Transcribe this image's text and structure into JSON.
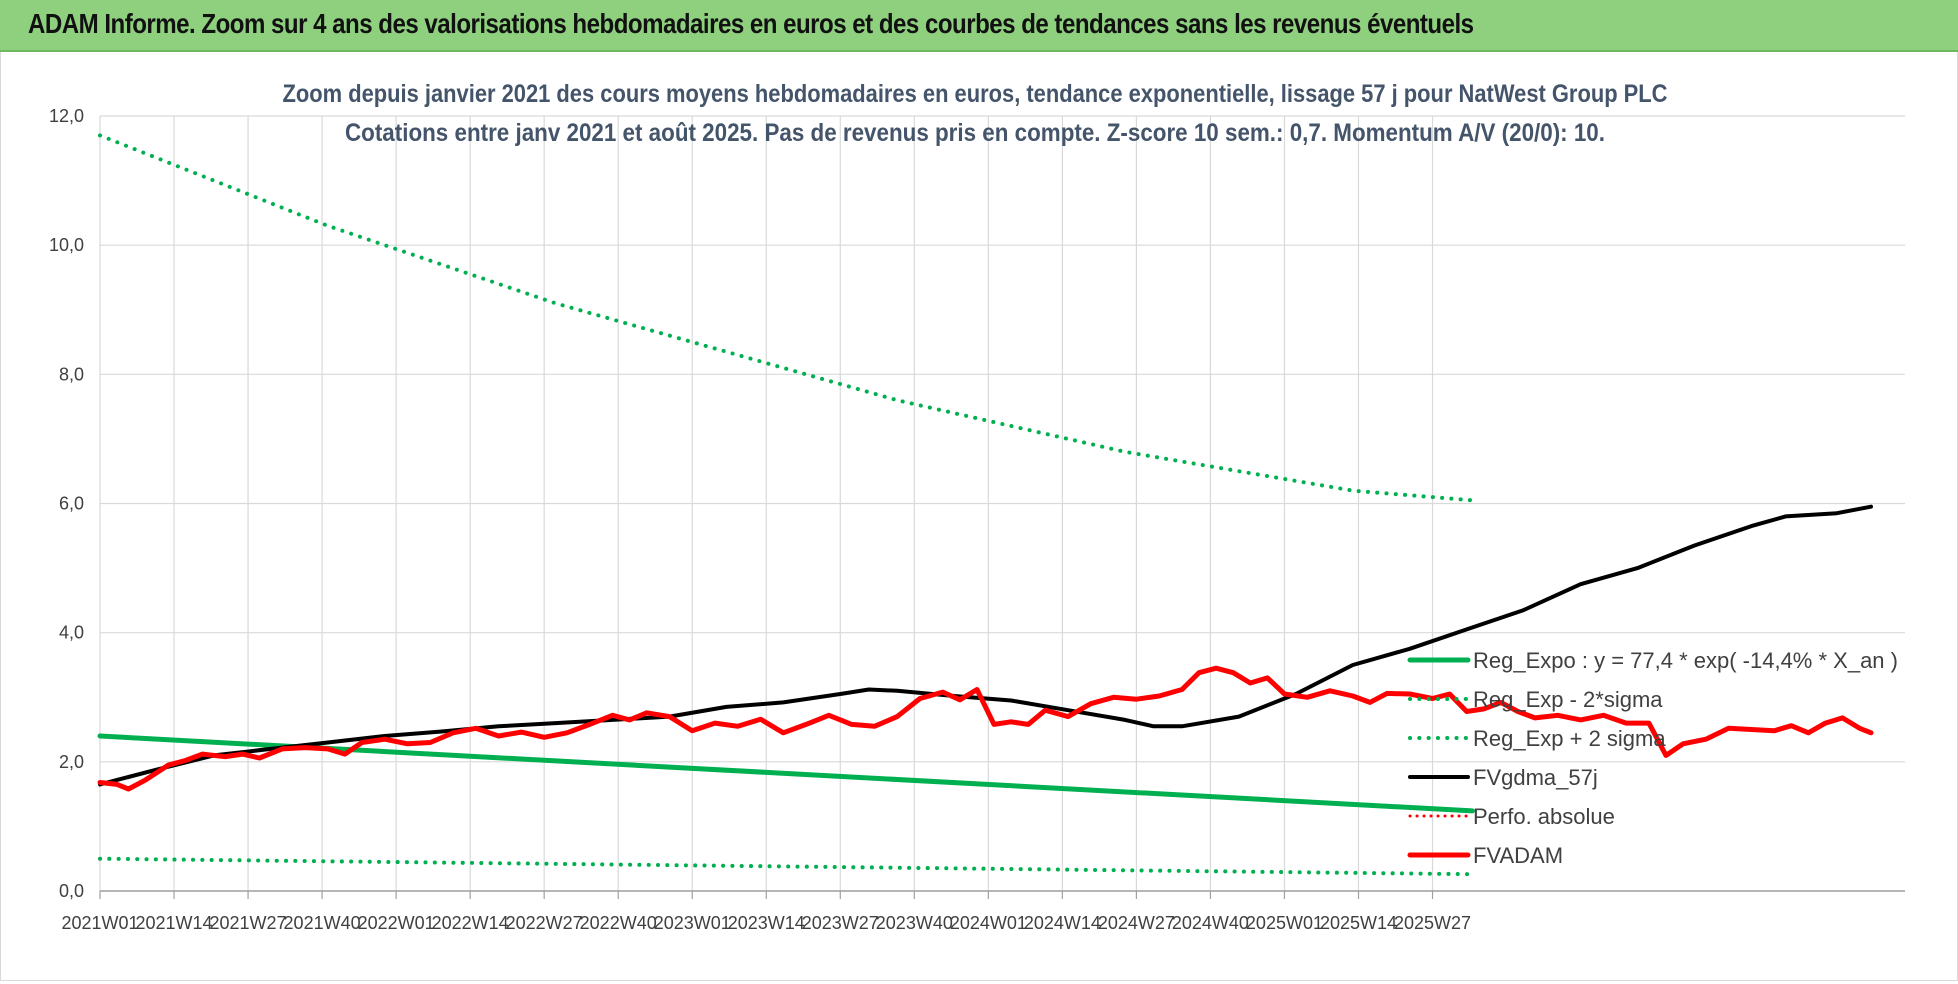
{
  "header": {
    "title": "ADAM Informe. Zoom sur 4 ans des valorisations hebdomadaires en euros et des courbes de tendances sans les revenus éventuels"
  },
  "chart_data": {
    "type": "line",
    "title": "Zoom depuis janvier 2021 des cours moyens hebdomadaires en euros, tendance exponentielle, lissage 57 j pour NatWest Group PLC",
    "subtitle": "Cotations entre janv 2021 et août 2025.  Pas de revenus pris en compte. Z-score 10 sem.: 0,7. Momentum A/V (20/0): 10.",
    "y_ticks": [
      "0,0",
      "2,0",
      "4,0",
      "6,0",
      "8,0",
      "10,0",
      "12,0"
    ],
    "ylim": [
      0,
      12
    ],
    "x_ticks": [
      "2021W01",
      "2021W14",
      "2021W27",
      "2021W40",
      "2022W01",
      "2022W14",
      "2022W27",
      "2022W40",
      "2023W01",
      "2023W14",
      "2023W27",
      "2023W40",
      "2024W01",
      "2024W14",
      "2024W27",
      "2024W40",
      "2025W01",
      "2025W14",
      "2025W27"
    ],
    "grid": true,
    "legend_position": "bottom-right",
    "series": [
      {
        "name": "Reg_Expo : y = 77,4 * exp( -14,4% *  X_an )",
        "color": "#00b050",
        "style": "solid",
        "width": 5,
        "points": [
          [
            0,
            2.4
          ],
          [
            241,
            1.24
          ]
        ]
      },
      {
        "name": "Reg_Exp - 2*sigma",
        "color": "#00b050",
        "style": "dotted",
        "width": 4,
        "points": [
          [
            0,
            0.5
          ],
          [
            241,
            0.26
          ]
        ]
      },
      {
        "name": "Reg_Exp + 2 sigma",
        "color": "#00b050",
        "style": "dotted",
        "width": 4,
        "points": [
          [
            0,
            11.7
          ],
          [
            20,
            11.0
          ],
          [
            40,
            10.3
          ],
          [
            60,
            9.7
          ],
          [
            80,
            9.1
          ],
          [
            100,
            8.6
          ],
          [
            120,
            8.1
          ],
          [
            140,
            7.6
          ],
          [
            160,
            7.2
          ],
          [
            180,
            6.8
          ],
          [
            200,
            6.5
          ],
          [
            220,
            6.2
          ],
          [
            241,
            6.05
          ]
        ]
      },
      {
        "name": "FVgdma_57j",
        "color": "#000000",
        "style": "solid",
        "width": 4,
        "points": [
          [
            0,
            1.65
          ],
          [
            10,
            1.88
          ],
          [
            20,
            2.1
          ],
          [
            30,
            2.2
          ],
          [
            40,
            2.3
          ],
          [
            50,
            2.4
          ],
          [
            60,
            2.47
          ],
          [
            70,
            2.55
          ],
          [
            80,
            2.6
          ],
          [
            90,
            2.65
          ],
          [
            100,
            2.7
          ],
          [
            110,
            2.85
          ],
          [
            120,
            2.92
          ],
          [
            130,
            3.05
          ],
          [
            135,
            3.12
          ],
          [
            140,
            3.1
          ],
          [
            150,
            3.02
          ],
          [
            160,
            2.95
          ],
          [
            170,
            2.8
          ],
          [
            180,
            2.65
          ],
          [
            185,
            2.55
          ],
          [
            190,
            2.55
          ],
          [
            200,
            2.7
          ],
          [
            210,
            3.05
          ],
          [
            220,
            3.5
          ],
          [
            230,
            3.75
          ],
          [
            240,
            4.05
          ],
          [
            250,
            4.35
          ],
          [
            260,
            4.75
          ],
          [
            270,
            5.0
          ],
          [
            280,
            5.35
          ],
          [
            290,
            5.65
          ],
          [
            296,
            5.8
          ],
          [
            305,
            5.85
          ],
          [
            311,
            5.95
          ]
        ]
      },
      {
        "name": "Perfo. absolue",
        "color": "#ff0000",
        "style": "dotted",
        "width": 3,
        "points": []
      },
      {
        "name": "FVADAM",
        "color": "#ff0000",
        "style": "solid",
        "width": 5,
        "points": [
          [
            0,
            1.68
          ],
          [
            3,
            1.65
          ],
          [
            5,
            1.58
          ],
          [
            8,
            1.72
          ],
          [
            12,
            1.95
          ],
          [
            15,
            2.02
          ],
          [
            18,
            2.12
          ],
          [
            22,
            2.08
          ],
          [
            25,
            2.12
          ],
          [
            28,
            2.06
          ],
          [
            32,
            2.2
          ],
          [
            36,
            2.22
          ],
          [
            40,
            2.2
          ],
          [
            43,
            2.12
          ],
          [
            46,
            2.3
          ],
          [
            50,
            2.35
          ],
          [
            54,
            2.28
          ],
          [
            58,
            2.3
          ],
          [
            62,
            2.45
          ],
          [
            66,
            2.52
          ],
          [
            70,
            2.4
          ],
          [
            74,
            2.46
          ],
          [
            78,
            2.38
          ],
          [
            82,
            2.45
          ],
          [
            86,
            2.58
          ],
          [
            90,
            2.72
          ],
          [
            93,
            2.65
          ],
          [
            96,
            2.76
          ],
          [
            100,
            2.7
          ],
          [
            104,
            2.48
          ],
          [
            108,
            2.6
          ],
          [
            112,
            2.55
          ],
          [
            116,
            2.66
          ],
          [
            120,
            2.45
          ],
          [
            124,
            2.58
          ],
          [
            128,
            2.72
          ],
          [
            132,
            2.58
          ],
          [
            136,
            2.55
          ],
          [
            140,
            2.7
          ],
          [
            144,
            2.98
          ],
          [
            148,
            3.08
          ],
          [
            151,
            2.96
          ],
          [
            154,
            3.12
          ],
          [
            157,
            2.58
          ],
          [
            160,
            2.62
          ],
          [
            163,
            2.58
          ],
          [
            166,
            2.8
          ],
          [
            170,
            2.7
          ],
          [
            174,
            2.9
          ],
          [
            178,
            3.0
          ],
          [
            182,
            2.97
          ],
          [
            186,
            3.02
          ],
          [
            190,
            3.12
          ],
          [
            193,
            3.38
          ],
          [
            196,
            3.45
          ],
          [
            199,
            3.38
          ],
          [
            202,
            3.22
          ],
          [
            205,
            3.3
          ],
          [
            208,
            3.05
          ],
          [
            212,
            3.0
          ],
          [
            216,
            3.1
          ],
          [
            220,
            3.02
          ],
          [
            223,
            2.92
          ],
          [
            226,
            3.06
          ],
          [
            230,
            3.05
          ],
          [
            234,
            2.98
          ],
          [
            237,
            3.05
          ],
          [
            240,
            2.78
          ],
          [
            243,
            2.82
          ],
          [
            246,
            2.92
          ],
          [
            249,
            2.78
          ],
          [
            252,
            2.68
          ],
          [
            256,
            2.72
          ],
          [
            260,
            2.65
          ],
          [
            264,
            2.72
          ],
          [
            268,
            2.6
          ],
          [
            272,
            2.6
          ],
          [
            275,
            2.1
          ],
          [
            278,
            2.28
          ],
          [
            282,
            2.35
          ],
          [
            286,
            2.52
          ],
          [
            290,
            2.5
          ],
          [
            294,
            2.48
          ],
          [
            297,
            2.56
          ],
          [
            300,
            2.45
          ],
          [
            303,
            2.6
          ],
          [
            306,
            2.68
          ],
          [
            309,
            2.52
          ],
          [
            311,
            2.45
          ]
        ]
      }
    ]
  }
}
